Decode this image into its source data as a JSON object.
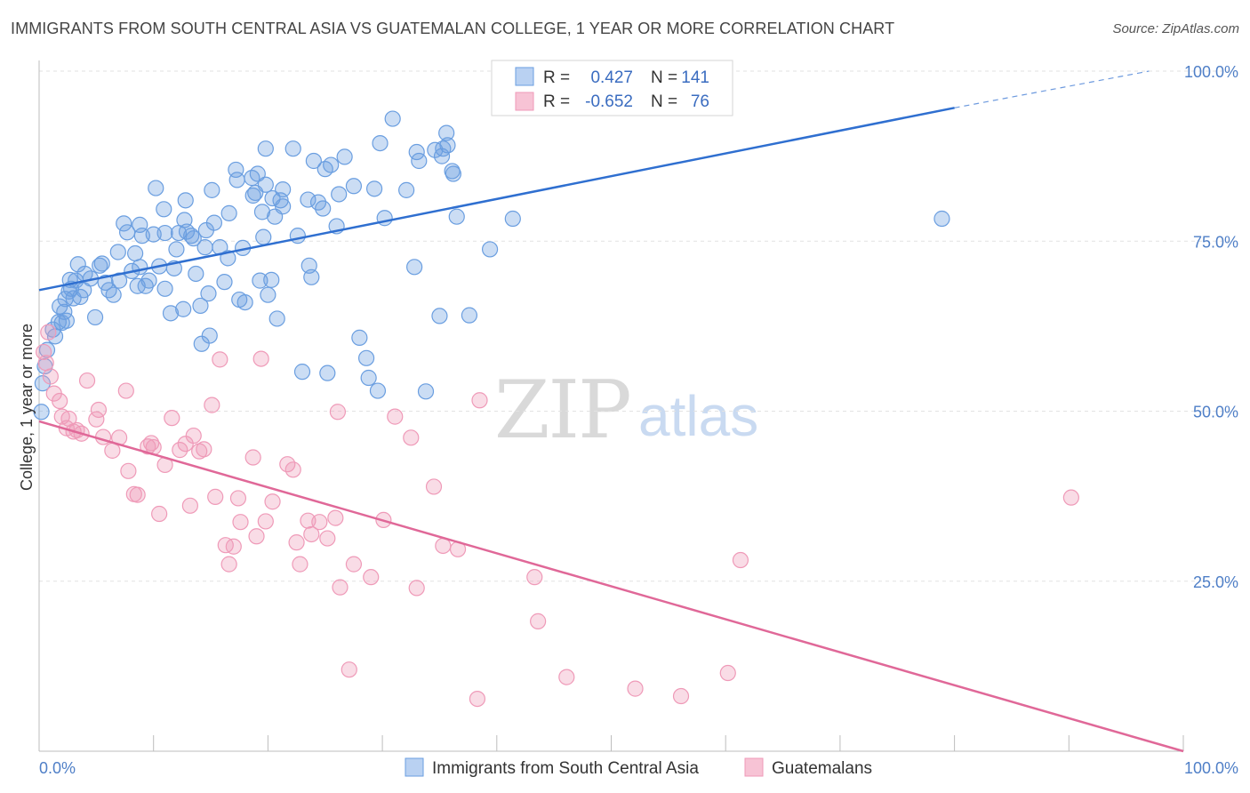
{
  "title": "IMMIGRANTS FROM SOUTH CENTRAL ASIA VS GUATEMALAN COLLEGE, 1 YEAR OR MORE CORRELATION CHART",
  "source": "Source: ZipAtlas.com",
  "watermark": {
    "zip": "ZIP",
    "atlas": "atlas"
  },
  "stats": [
    {
      "r_label": "R =",
      "r_value": "0.427",
      "n_label": "N =",
      "n_value": "141"
    },
    {
      "r_label": "R =",
      "r_value": "-0.652",
      "n_label": "N =",
      "n_value": "76"
    }
  ],
  "legend": [
    "Immigrants from South Central Asia",
    "Guatemalans"
  ],
  "colors": {
    "blue": "#6a9ee0",
    "blue_line": "#2f6fd0",
    "pink": "#ef9ab8",
    "pink_line": "#e06898",
    "axis_text": "#4f7fc7"
  },
  "chart_data": {
    "type": "scatter",
    "title": "IMMIGRANTS FROM SOUTH CENTRAL ASIA VS GUATEMALAN COLLEGE, 1 YEAR OR MORE CORRELATION CHART",
    "xlabel": "",
    "ylabel": "College, 1 year or more",
    "x_tick_labels": [
      "0.0%",
      "100.0%"
    ],
    "y_tick_labels": [
      "25.0%",
      "50.0%",
      "75.0%",
      "100.0%"
    ],
    "xlim": [
      0,
      100
    ],
    "ylim": [
      0,
      100
    ],
    "grid": true,
    "legend_position": "bottom",
    "series": [
      {
        "name": "Immigrants from South Central Asia",
        "r": 0.427,
        "n": 141,
        "trend": {
          "x": [
            0,
            80
          ],
          "y": [
            67.8,
            94.6
          ],
          "dashed_to": [
            97,
            100
          ]
        },
        "points": [
          [
            0.2,
            49.9
          ],
          [
            0.3,
            54.1
          ],
          [
            0.5,
            56.6
          ],
          [
            0.7,
            59.0
          ],
          [
            1.2,
            62.0
          ],
          [
            1.4,
            61.0
          ],
          [
            1.7,
            63.1
          ],
          [
            1.8,
            65.4
          ],
          [
            2.0,
            63.0
          ],
          [
            2.2,
            64.6
          ],
          [
            2.3,
            66.5
          ],
          [
            2.4,
            63.3
          ],
          [
            2.6,
            67.6
          ],
          [
            2.7,
            69.3
          ],
          [
            2.8,
            68.0
          ],
          [
            3.0,
            66.6
          ],
          [
            3.2,
            69.2
          ],
          [
            3.4,
            71.6
          ],
          [
            3.6,
            66.8
          ],
          [
            3.9,
            67.8
          ],
          [
            4.0,
            70.2
          ],
          [
            4.5,
            69.5
          ],
          [
            4.9,
            63.8
          ],
          [
            5.3,
            71.4
          ],
          [
            5.5,
            71.7
          ],
          [
            5.8,
            68.9
          ],
          [
            6.1,
            67.8
          ],
          [
            6.5,
            67.1
          ],
          [
            6.9,
            73.4
          ],
          [
            7.0,
            69.2
          ],
          [
            7.4,
            77.6
          ],
          [
            7.7,
            76.3
          ],
          [
            8.1,
            70.6
          ],
          [
            8.4,
            73.2
          ],
          [
            8.6,
            68.4
          ],
          [
            8.8,
            77.4
          ],
          [
            8.8,
            71.2
          ],
          [
            9.0,
            75.8
          ],
          [
            9.3,
            68.4
          ],
          [
            9.6,
            69.2
          ],
          [
            10.0,
            76.0
          ],
          [
            10.2,
            82.8
          ],
          [
            10.5,
            71.3
          ],
          [
            10.9,
            79.7
          ],
          [
            11.0,
            76.2
          ],
          [
            11.0,
            68.0
          ],
          [
            11.5,
            64.4
          ],
          [
            11.8,
            71.0
          ],
          [
            12.0,
            73.8
          ],
          [
            12.2,
            76.2
          ],
          [
            12.6,
            65.0
          ],
          [
            12.7,
            78.1
          ],
          [
            12.8,
            81.0
          ],
          [
            12.9,
            76.4
          ],
          [
            13.3,
            75.8
          ],
          [
            13.5,
            75.4
          ],
          [
            13.7,
            70.2
          ],
          [
            14.1,
            65.5
          ],
          [
            14.2,
            59.9
          ],
          [
            14.5,
            74.1
          ],
          [
            14.6,
            76.6
          ],
          [
            14.8,
            67.3
          ],
          [
            14.9,
            61.1
          ],
          [
            15.1,
            82.5
          ],
          [
            15.3,
            77.7
          ],
          [
            15.8,
            74.1
          ],
          [
            16.2,
            69.0
          ],
          [
            16.5,
            72.5
          ],
          [
            16.6,
            79.1
          ],
          [
            17.2,
            85.5
          ],
          [
            17.3,
            84.0
          ],
          [
            17.5,
            66.4
          ],
          [
            17.8,
            74.0
          ],
          [
            18.0,
            66.0
          ],
          [
            18.6,
            84.3
          ],
          [
            18.7,
            81.7
          ],
          [
            18.9,
            82.1
          ],
          [
            19.1,
            84.9
          ],
          [
            19.3,
            69.2
          ],
          [
            19.5,
            79.3
          ],
          [
            19.6,
            75.6
          ],
          [
            19.8,
            88.6
          ],
          [
            19.8,
            83.3
          ],
          [
            20.0,
            67.1
          ],
          [
            20.3,
            69.3
          ],
          [
            20.4,
            81.3
          ],
          [
            20.6,
            78.6
          ],
          [
            20.8,
            63.6
          ],
          [
            21.1,
            81.0
          ],
          [
            21.3,
            80.1
          ],
          [
            21.3,
            82.6
          ],
          [
            22.2,
            88.6
          ],
          [
            22.6,
            75.8
          ],
          [
            23.0,
            55.8
          ],
          [
            23.5,
            81.1
          ],
          [
            23.6,
            71.4
          ],
          [
            23.8,
            69.7
          ],
          [
            24.0,
            86.8
          ],
          [
            24.4,
            80.7
          ],
          [
            24.8,
            79.8
          ],
          [
            25.0,
            85.6
          ],
          [
            25.2,
            55.6
          ],
          [
            25.5,
            86.2
          ],
          [
            26.0,
            77.2
          ],
          [
            26.2,
            81.9
          ],
          [
            26.7,
            87.4
          ],
          [
            27.5,
            83.1
          ],
          [
            28.0,
            60.8
          ],
          [
            28.6,
            57.8
          ],
          [
            28.8,
            54.9
          ],
          [
            29.3,
            82.7
          ],
          [
            29.6,
            53.0
          ],
          [
            29.8,
            89.4
          ],
          [
            30.2,
            78.4
          ],
          [
            30.9,
            93.0
          ],
          [
            32.1,
            82.5
          ],
          [
            32.8,
            71.2
          ],
          [
            33.0,
            88.1
          ],
          [
            33.2,
            86.8
          ],
          [
            33.8,
            52.9
          ],
          [
            34.6,
            88.4
          ],
          [
            35.0,
            64.0
          ],
          [
            35.2,
            87.5
          ],
          [
            35.3,
            88.6
          ],
          [
            35.6,
            90.9
          ],
          [
            35.7,
            89.1
          ],
          [
            36.1,
            85.3
          ],
          [
            36.2,
            84.9
          ],
          [
            36.5,
            78.6
          ],
          [
            37.6,
            64.1
          ],
          [
            39.4,
            73.8
          ],
          [
            41.4,
            78.3
          ],
          [
            78.9,
            78.3
          ]
        ]
      },
      {
        "name": "Guatemalans",
        "r": -0.652,
        "n": 76,
        "trend": {
          "x": [
            0,
            100
          ],
          "y": [
            48.5,
            0
          ]
        },
        "points": [
          [
            0.4,
            58.7
          ],
          [
            0.6,
            57.1
          ],
          [
            0.8,
            61.6
          ],
          [
            1.0,
            55.1
          ],
          [
            1.3,
            52.6
          ],
          [
            1.8,
            51.5
          ],
          [
            2.0,
            49.2
          ],
          [
            2.4,
            47.5
          ],
          [
            2.6,
            48.9
          ],
          [
            3.0,
            47.0
          ],
          [
            3.3,
            47.2
          ],
          [
            3.7,
            46.7
          ],
          [
            4.2,
            54.5
          ],
          [
            5.0,
            48.8
          ],
          [
            5.2,
            50.2
          ],
          [
            5.6,
            46.2
          ],
          [
            6.4,
            44.2
          ],
          [
            7.0,
            46.1
          ],
          [
            7.6,
            53.0
          ],
          [
            7.8,
            41.2
          ],
          [
            8.3,
            37.8
          ],
          [
            8.6,
            37.7
          ],
          [
            9.5,
            44.8
          ],
          [
            9.8,
            45.3
          ],
          [
            10.0,
            44.7
          ],
          [
            10.5,
            34.9
          ],
          [
            11.0,
            42.1
          ],
          [
            11.6,
            49.0
          ],
          [
            12.3,
            44.3
          ],
          [
            12.8,
            45.2
          ],
          [
            13.2,
            36.1
          ],
          [
            13.5,
            46.4
          ],
          [
            14.0,
            44.1
          ],
          [
            14.4,
            44.4
          ],
          [
            15.1,
            50.9
          ],
          [
            15.4,
            37.4
          ],
          [
            15.8,
            57.6
          ],
          [
            16.3,
            30.3
          ],
          [
            16.6,
            27.5
          ],
          [
            17.0,
            30.1
          ],
          [
            17.4,
            37.2
          ],
          [
            17.6,
            33.7
          ],
          [
            18.7,
            43.2
          ],
          [
            19.0,
            31.6
          ],
          [
            19.4,
            57.7
          ],
          [
            19.8,
            33.8
          ],
          [
            20.4,
            36.7
          ],
          [
            21.7,
            42.2
          ],
          [
            22.2,
            41.4
          ],
          [
            22.5,
            30.7
          ],
          [
            22.8,
            27.5
          ],
          [
            23.5,
            33.9
          ],
          [
            23.8,
            31.9
          ],
          [
            24.5,
            33.7
          ],
          [
            25.2,
            31.3
          ],
          [
            25.9,
            34.3
          ],
          [
            26.1,
            49.9
          ],
          [
            26.3,
            24.1
          ],
          [
            27.1,
            12.0
          ],
          [
            27.5,
            27.5
          ],
          [
            29.0,
            25.6
          ],
          [
            30.1,
            34.0
          ],
          [
            31.1,
            49.2
          ],
          [
            32.5,
            46.1
          ],
          [
            33.0,
            24.0
          ],
          [
            34.5,
            38.9
          ],
          [
            35.3,
            30.2
          ],
          [
            36.6,
            29.7
          ],
          [
            38.3,
            7.7
          ],
          [
            38.5,
            51.6
          ],
          [
            43.3,
            25.6
          ],
          [
            43.6,
            19.1
          ],
          [
            46.1,
            10.9
          ],
          [
            52.1,
            9.2
          ],
          [
            56.1,
            8.1
          ],
          [
            60.2,
            11.5
          ],
          [
            61.3,
            28.1
          ],
          [
            90.2,
            37.3
          ]
        ]
      }
    ]
  }
}
